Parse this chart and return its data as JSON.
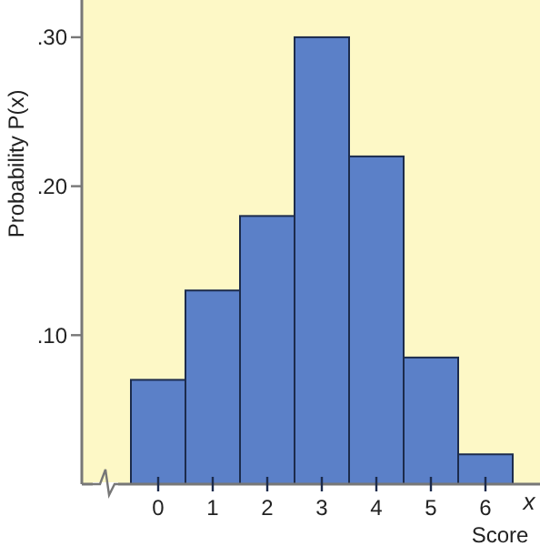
{
  "chart_data": {
    "type": "histogram",
    "ylabel": "Probability P(x)",
    "xlabel": "Score",
    "annotations": [
      "x"
    ],
    "bins": [
      -0.5,
      0.5,
      1.5,
      2.5,
      3.5,
      4.5,
      5.5,
      6.5
    ],
    "values": [
      0.07,
      0.13,
      0.18,
      0.3,
      0.22,
      0.085,
      0.02
    ],
    "color": "#5b80c8",
    "xlim": [
      -1.4,
      7
    ],
    "xticks": [
      0,
      1,
      2,
      3,
      4,
      5,
      6
    ],
    "ylim": [
      0,
      0.325
    ],
    "yticks": [
      {
        "value": 0.1,
        "label": ".10"
      },
      {
        "value": 0.2,
        "label": ".20"
      },
      {
        "value": 0.3,
        "label": ".30"
      }
    ],
    "grid": false
  }
}
